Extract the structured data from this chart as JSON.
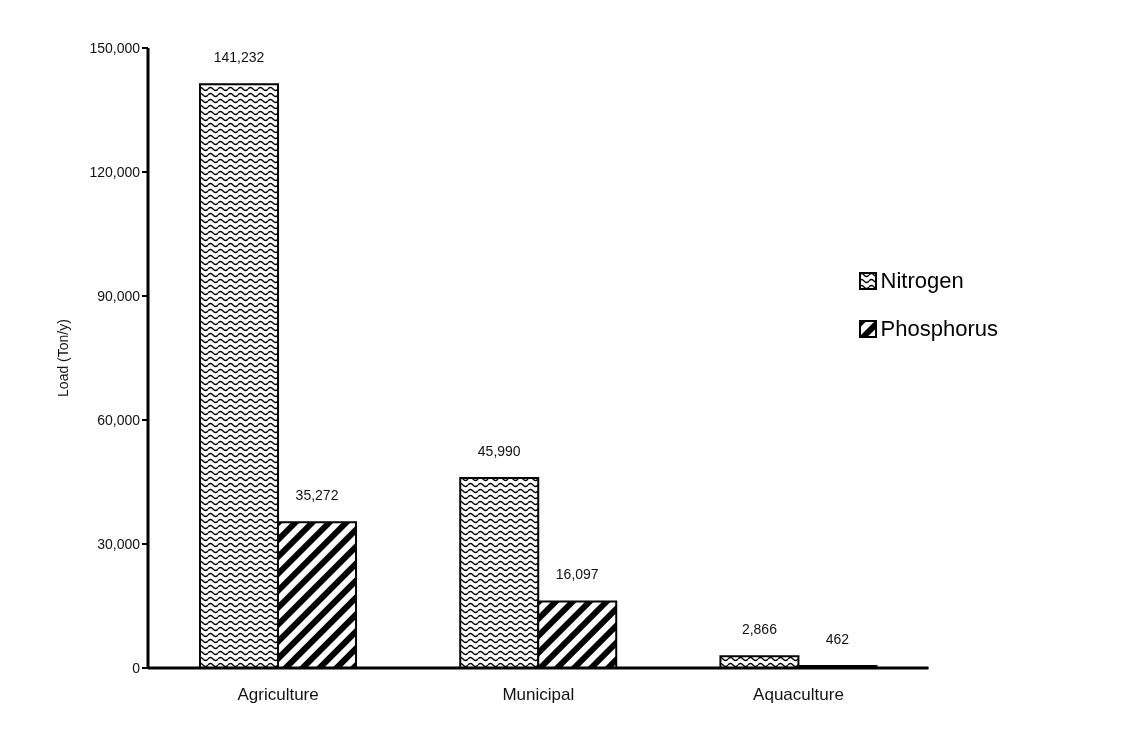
{
  "chart_data": {
    "type": "bar",
    "ylabel": "Load (Ton/y)",
    "categories": [
      "Agriculture",
      "Municipal",
      "Aquaculture"
    ],
    "series": [
      {
        "name": "Nitrogen",
        "color": "#000000",
        "values": [
          141232,
          45990,
          2866
        ],
        "value_labels": [
          "141,232",
          "45,990",
          "2,866"
        ]
      },
      {
        "name": "Phosphorus",
        "color": "#000000",
        "values": [
          35272,
          16097,
          462
        ],
        "value_labels": [
          "35,272",
          "16,097",
          "462"
        ]
      }
    ],
    "ylim": [
      0,
      150000
    ],
    "yticks": [
      {
        "value": 0,
        "label": "0"
      },
      {
        "value": 30000,
        "label": "30,000"
      },
      {
        "value": 60000,
        "label": "60,000"
      },
      {
        "value": 90000,
        "label": "90,000"
      },
      {
        "value": 120000,
        "label": "120,000"
      },
      {
        "value": 150000,
        "label": "150,000"
      }
    ],
    "grid": false,
    "legend": "right"
  }
}
